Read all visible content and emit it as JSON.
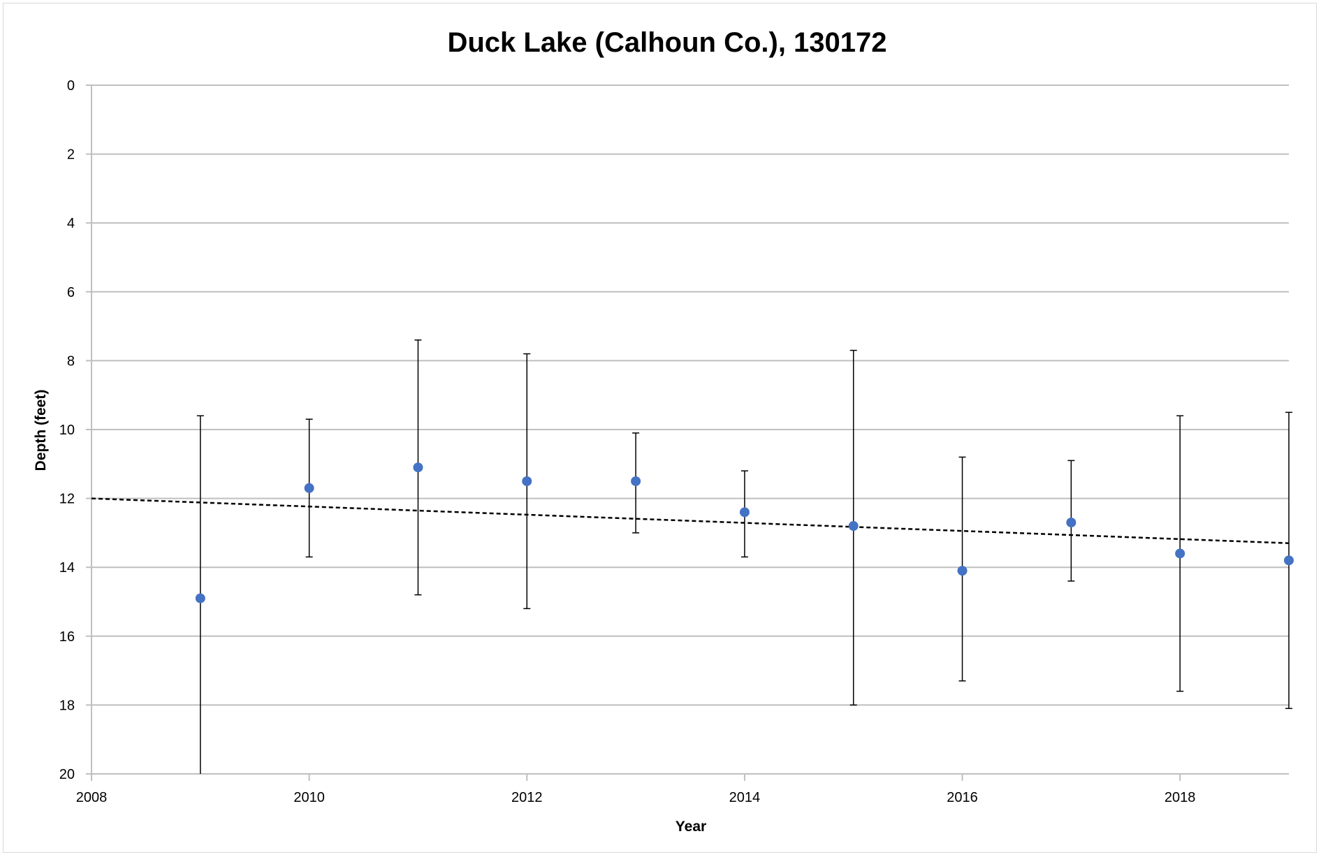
{
  "chart_data": {
    "type": "scatter",
    "title": "Duck Lake (Calhoun Co.), 130172",
    "xlabel": "Year",
    "ylabel": "Depth (feet)",
    "xlim": [
      2008,
      2019
    ],
    "ylim": [
      0,
      20
    ],
    "y_inverted": true,
    "grid": "horizontal",
    "x_ticks": [
      "2008",
      "2010",
      "2012",
      "2014",
      "2016",
      "2018"
    ],
    "y_ticks": [
      "0",
      "2",
      "4",
      "6",
      "8",
      "10",
      "12",
      "14",
      "16",
      "18",
      "20"
    ],
    "series": [
      {
        "marker": "circle",
        "color": "#4472c4",
        "points": [
          {
            "x": 2009,
            "y": 14.9,
            "err_low": 9.6,
            "err_high": 20.0
          },
          {
            "x": 2010,
            "y": 11.7,
            "err_low": 9.7,
            "err_high": 13.7
          },
          {
            "x": 2011,
            "y": 11.1,
            "err_low": 7.4,
            "err_high": 14.8
          },
          {
            "x": 2012,
            "y": 11.5,
            "err_low": 7.8,
            "err_high": 15.2
          },
          {
            "x": 2013,
            "y": 11.5,
            "err_low": 10.1,
            "err_high": 13.0
          },
          {
            "x": 2014,
            "y": 12.4,
            "err_low": 11.2,
            "err_high": 13.7
          },
          {
            "x": 2015,
            "y": 12.8,
            "err_low": 7.7,
            "err_high": 18.0
          },
          {
            "x": 2016,
            "y": 14.1,
            "err_low": 10.8,
            "err_high": 17.3
          },
          {
            "x": 2017,
            "y": 12.7,
            "err_low": 10.9,
            "err_high": 14.4
          },
          {
            "x": 2018,
            "y": 13.6,
            "err_low": 9.6,
            "err_high": 17.6
          },
          {
            "x": 2019,
            "y": 13.8,
            "err_low": 9.5,
            "err_high": 18.1
          }
        ]
      }
    ],
    "trendline": {
      "type": "linear",
      "style": "dashed",
      "color": "#000000",
      "x": [
        2008,
        2019
      ],
      "y": [
        12.0,
        13.3
      ]
    }
  }
}
